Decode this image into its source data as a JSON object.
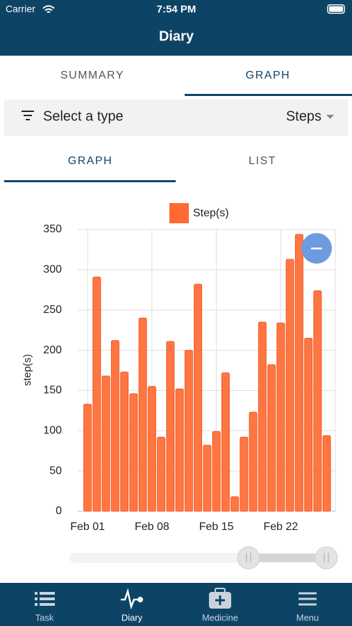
{
  "status_bar": {
    "carrier": "Carrier",
    "time": "7:54 PM"
  },
  "header": {
    "title": "Diary"
  },
  "tabs": [
    "SUMMARY",
    "GRAPH"
  ],
  "filter": {
    "label": "Select a type",
    "value": "Steps"
  },
  "subtabs": [
    "GRAPH",
    "LIST"
  ],
  "chart_data": {
    "type": "bar",
    "ylabel": "step(s)",
    "categories": [
      "Feb 01",
      null,
      null,
      null,
      null,
      null,
      null,
      "Feb 08",
      null,
      null,
      null,
      null,
      null,
      null,
      "Feb 15",
      null,
      null,
      null,
      null,
      null,
      null,
      "Feb 22",
      null,
      null,
      null,
      null,
      null
    ],
    "series": [
      {
        "name": "Step(s)",
        "color": "#ff6a33",
        "values": [
          133,
          291,
          168,
          212,
          173,
          146,
          240,
          155,
          92,
          211,
          152,
          200,
          282,
          82,
          99,
          172,
          18,
          92,
          123,
          235,
          182,
          234,
          313,
          344,
          215,
          274,
          94
        ]
      }
    ],
    "ylim": [
      0,
      350
    ],
    "yticks": [
      0,
      50,
      100,
      150,
      200,
      250,
      300,
      350
    ],
    "grid": true,
    "legend": "top"
  },
  "nav": [
    "Task",
    "Diary",
    "Medicine",
    "Menu"
  ]
}
